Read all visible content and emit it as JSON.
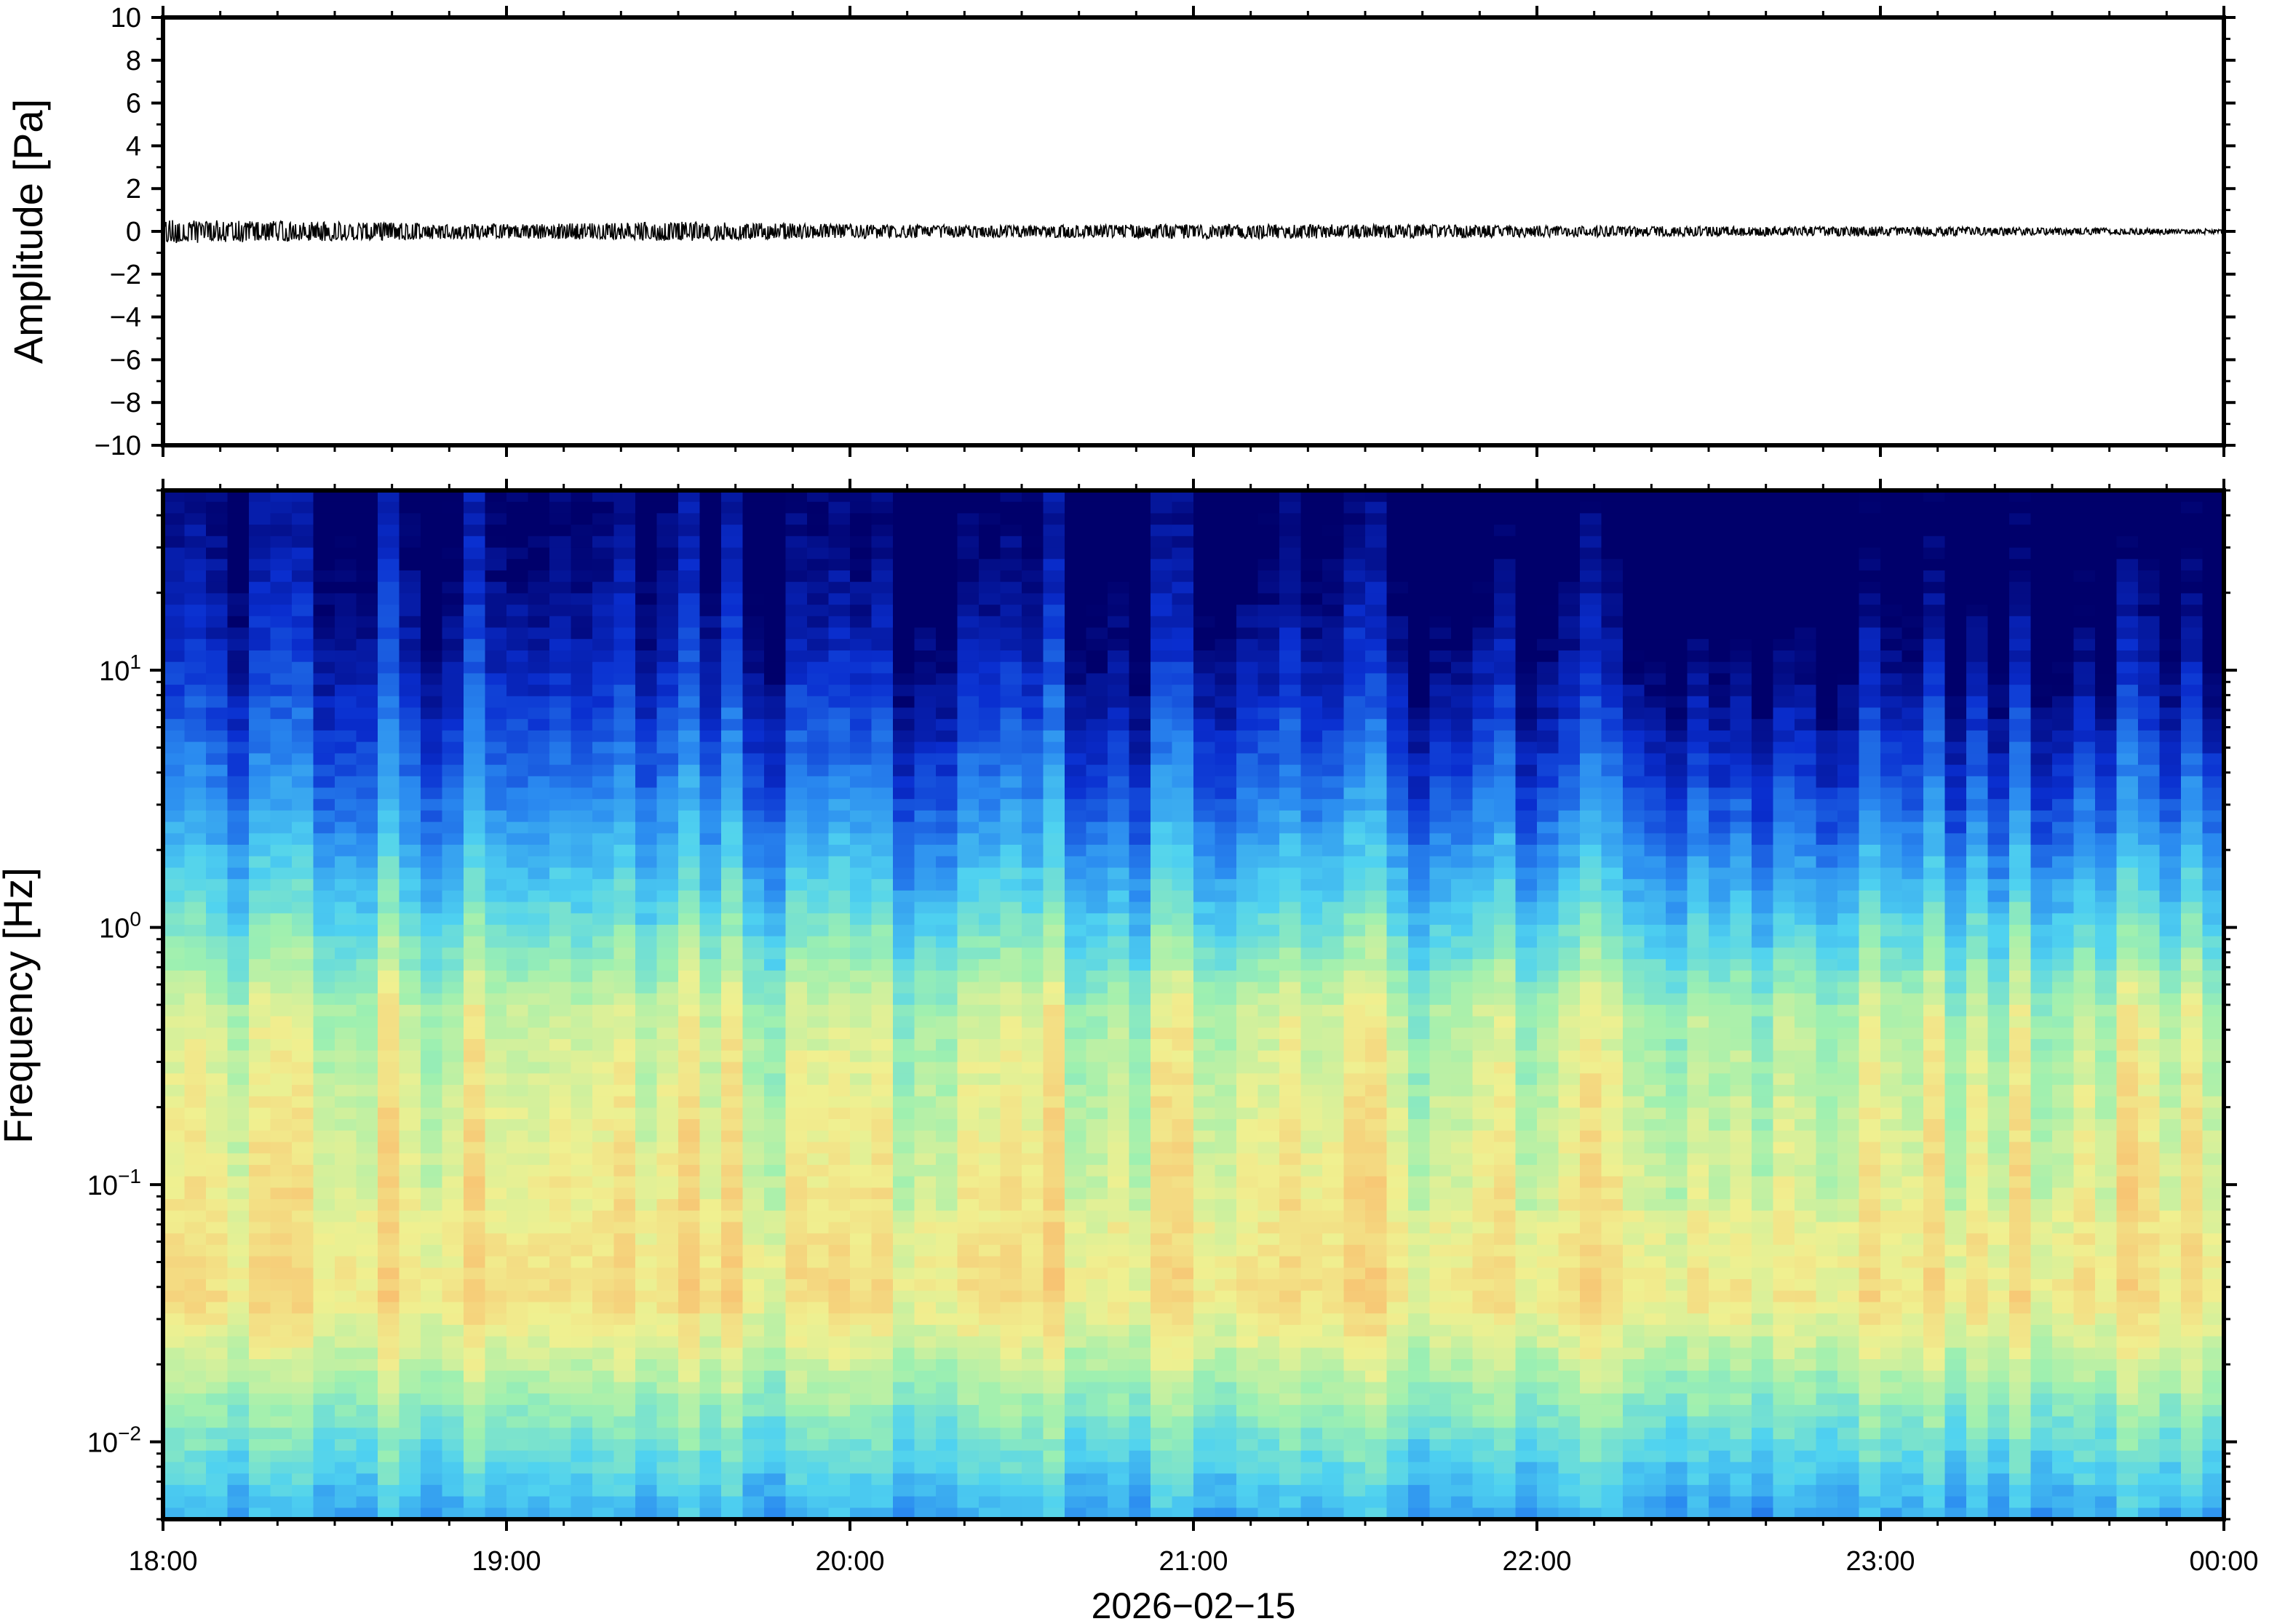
{
  "chart_data": [
    {
      "type": "line",
      "ylabel": "Amplitude [Pa]",
      "ylim": [
        -10,
        10
      ],
      "yticks": [
        "10",
        "8",
        "6",
        "4",
        "2",
        "0",
        "−2",
        "−4",
        "−6",
        "−8",
        "−10"
      ],
      "series": [
        {
          "values_description_free": true,
          "x": [
            "18:00",
            "18:30",
            "19:00",
            "19:30",
            "20:00",
            "20:30",
            "21:00",
            "21:30",
            "22:00",
            "22:30",
            "23:00",
            "23:30",
            "00:00"
          ],
          "y": [
            0.25,
            0.2,
            0.15,
            0.2,
            0.15,
            0.12,
            0.15,
            0.15,
            0.12,
            0.1,
            0.1,
            0.08,
            0.05
          ]
        }
      ],
      "grid": false,
      "color": "#000000"
    },
    {
      "type": "heatmap",
      "ylabel": "Frequency [Hz]",
      "xlabel": "2026−02−15",
      "ylim": [
        0.005,
        50
      ],
      "yscale": "log",
      "yticks": [
        {
          "value": 10,
          "base": "10",
          "exp": "1"
        },
        {
          "value": 1,
          "base": "10",
          "exp": "0"
        },
        {
          "value": 0.1,
          "base": "10",
          "exp": "−1"
        },
        {
          "value": 0.01,
          "base": "10",
          "exp": "−2"
        }
      ],
      "xticks": [
        "18:00",
        "19:00",
        "20:00",
        "21:00",
        "22:00",
        "23:00",
        "00:00"
      ],
      "colormap": [
        "#00006b",
        "#0a2fd0",
        "#2a8af0",
        "#4fd2f0",
        "#9ef0b0",
        "#f0f090",
        "#f8c070",
        "#f08070"
      ],
      "grid": false
    }
  ]
}
